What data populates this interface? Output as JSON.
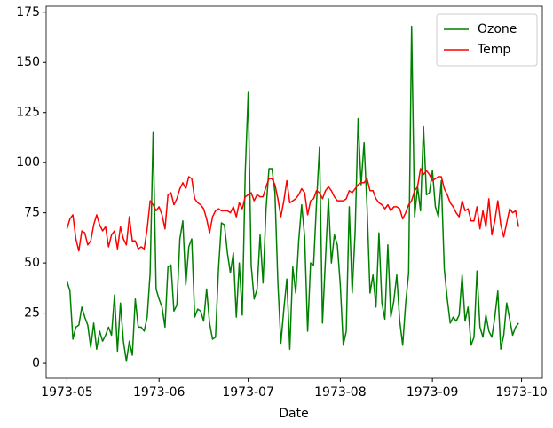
{
  "chart_data": {
    "type": "line",
    "x_label": "Date",
    "x": [
      "1973-05-01",
      "1973-05-02",
      "1973-05-03",
      "1973-05-04",
      "1973-05-05",
      "1973-05-06",
      "1973-05-07",
      "1973-05-08",
      "1973-05-09",
      "1973-05-10",
      "1973-05-11",
      "1973-05-12",
      "1973-05-13",
      "1973-05-14",
      "1973-05-15",
      "1973-05-16",
      "1973-05-17",
      "1973-05-18",
      "1973-05-19",
      "1973-05-20",
      "1973-05-21",
      "1973-05-22",
      "1973-05-23",
      "1973-05-24",
      "1973-05-25",
      "1973-05-26",
      "1973-05-27",
      "1973-05-28",
      "1973-05-29",
      "1973-05-30",
      "1973-05-31",
      "1973-06-01",
      "1973-06-02",
      "1973-06-03",
      "1973-06-04",
      "1973-06-05",
      "1973-06-06",
      "1973-06-07",
      "1973-06-08",
      "1973-06-09",
      "1973-06-10",
      "1973-06-11",
      "1973-06-12",
      "1973-06-13",
      "1973-06-14",
      "1973-06-15",
      "1973-06-16",
      "1973-06-17",
      "1973-06-18",
      "1973-06-19",
      "1973-06-20",
      "1973-06-21",
      "1973-06-22",
      "1973-06-23",
      "1973-06-24",
      "1973-06-25",
      "1973-06-26",
      "1973-06-27",
      "1973-06-28",
      "1973-06-29",
      "1973-06-30",
      "1973-07-01",
      "1973-07-02",
      "1973-07-03",
      "1973-07-04",
      "1973-07-05",
      "1973-07-06",
      "1973-07-07",
      "1973-07-08",
      "1973-07-09",
      "1973-07-10",
      "1973-07-11",
      "1973-07-12",
      "1973-07-13",
      "1973-07-14",
      "1973-07-15",
      "1973-07-16",
      "1973-07-17",
      "1973-07-18",
      "1973-07-19",
      "1973-07-20",
      "1973-07-21",
      "1973-07-22",
      "1973-07-23",
      "1973-07-24",
      "1973-07-25",
      "1973-07-26",
      "1973-07-27",
      "1973-07-28",
      "1973-07-29",
      "1973-07-30",
      "1973-07-31",
      "1973-08-01",
      "1973-08-02",
      "1973-08-03",
      "1973-08-04",
      "1973-08-05",
      "1973-08-06",
      "1973-08-07",
      "1973-08-08",
      "1973-08-09",
      "1973-08-10",
      "1973-08-11",
      "1973-08-12",
      "1973-08-13",
      "1973-08-14",
      "1973-08-15",
      "1973-08-16",
      "1973-08-17",
      "1973-08-18",
      "1973-08-19",
      "1973-08-20",
      "1973-08-21",
      "1973-08-22",
      "1973-08-23",
      "1973-08-24",
      "1973-08-25",
      "1973-08-26",
      "1973-08-27",
      "1973-08-28",
      "1973-08-29",
      "1973-08-30",
      "1973-08-31",
      "1973-09-01",
      "1973-09-02",
      "1973-09-03",
      "1973-09-04",
      "1973-09-05",
      "1973-09-06",
      "1973-09-07",
      "1973-09-08",
      "1973-09-09",
      "1973-09-10",
      "1973-09-11",
      "1973-09-12",
      "1973-09-13",
      "1973-09-14",
      "1973-09-15",
      "1973-09-16",
      "1973-09-17",
      "1973-09-18",
      "1973-09-19",
      "1973-09-20",
      "1973-09-21",
      "1973-09-22",
      "1973-09-23",
      "1973-09-24",
      "1973-09-25",
      "1973-09-26",
      "1973-09-27",
      "1973-09-28",
      "1973-09-29",
      "1973-09-30"
    ],
    "series": [
      {
        "name": "Ozone",
        "color": "#008000",
        "values": [
          41,
          36,
          12,
          18,
          19,
          28,
          23,
          19,
          8,
          20,
          7,
          16,
          11,
          14,
          18,
          14,
          34,
          6,
          30,
          11,
          1,
          11,
          4,
          32,
          18,
          18,
          16,
          23,
          45,
          115,
          37,
          32,
          28,
          18,
          48,
          49,
          26,
          29,
          62,
          71,
          39,
          58,
          62,
          23,
          27,
          26,
          21,
          37,
          20,
          12,
          13,
          47,
          70,
          69,
          55,
          45,
          55,
          23,
          50,
          24,
          95,
          135,
          49,
          32,
          37,
          64,
          40,
          77,
          97,
          97,
          85,
          40,
          10,
          27,
          42,
          7,
          48,
          35,
          61,
          79,
          63,
          16,
          50,
          49,
          80,
          108,
          20,
          52,
          82,
          50,
          64,
          59,
          39,
          9,
          16,
          78,
          35,
          66,
          122,
          89,
          110,
          78,
          35,
          44,
          28,
          65,
          30,
          22,
          59,
          23,
          31,
          44,
          21,
          9,
          30,
          45,
          168,
          73,
          88,
          76,
          118,
          84,
          85,
          96,
          78,
          73,
          91,
          47,
          32,
          20,
          23,
          21,
          24,
          44,
          21,
          28,
          9,
          13,
          46,
          18,
          13,
          24,
          16,
          13,
          23,
          36,
          7,
          14,
          30,
          22,
          14,
          18,
          20
        ]
      },
      {
        "name": "Temp",
        "color": "#ff0000",
        "values": [
          67,
          72,
          74,
          62,
          56,
          66,
          65,
          59,
          61,
          69,
          74,
          69,
          66,
          68,
          58,
          64,
          66,
          57,
          68,
          62,
          59,
          73,
          61,
          61,
          57,
          58,
          57,
          67,
          81,
          79,
          76,
          78,
          74,
          67,
          84,
          85,
          79,
          82,
          87,
          90,
          87,
          93,
          92,
          82,
          80,
          79,
          77,
          72,
          65,
          73,
          76,
          77,
          76,
          76,
          76,
          75,
          78,
          73,
          80,
          77,
          83,
          84,
          85,
          81,
          84,
          83,
          83,
          88,
          92,
          92,
          89,
          82,
          73,
          81,
          91,
          80,
          81,
          82,
          84,
          87,
          85,
          74,
          81,
          82,
          86,
          85,
          82,
          86,
          88,
          86,
          83,
          81,
          81,
          81,
          82,
          86,
          85,
          87,
          89,
          90,
          90,
          92,
          86,
          86,
          82,
          80,
          79,
          77,
          79,
          76,
          78,
          78,
          77,
          72,
          75,
          79,
          81,
          86,
          88,
          97,
          94,
          96,
          94,
          91,
          92,
          93,
          93,
          87,
          84,
          80,
          78,
          75,
          73,
          81,
          76,
          77,
          71,
          71,
          78,
          67,
          76,
          68,
          82,
          64,
          71,
          81,
          69,
          63,
          70,
          77,
          75,
          76,
          68
        ]
      }
    ],
    "xlim": [
      "1973-04-24",
      "1973-10-08"
    ],
    "xticks": [
      {
        "value": "1973-05-01",
        "label": "1973-05"
      },
      {
        "value": "1973-06-01",
        "label": "1973-06"
      },
      {
        "value": "1973-07-01",
        "label": "1973-07"
      },
      {
        "value": "1973-08-01",
        "label": "1973-08"
      },
      {
        "value": "1973-09-01",
        "label": "1973-09"
      },
      {
        "value": "1973-10-01",
        "label": "1973-10"
      }
    ],
    "ylim": [
      -7.5,
      178
    ],
    "yticks": [
      0,
      25,
      50,
      75,
      100,
      125,
      150,
      175
    ],
    "legend": "upper right"
  }
}
